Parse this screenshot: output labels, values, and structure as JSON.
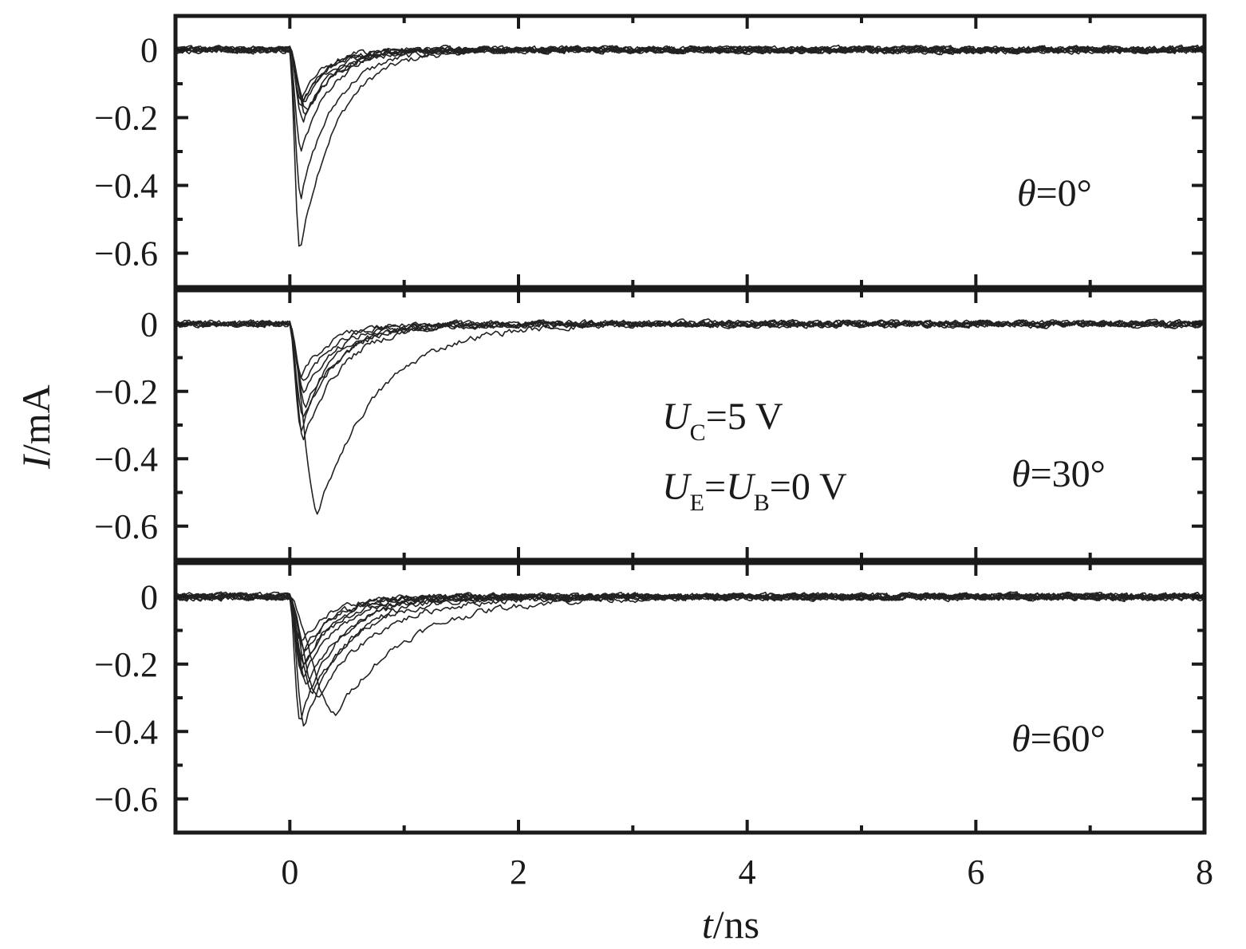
{
  "chart_data": {
    "type": "line",
    "xlabel": {
      "italic": "t",
      "rest": "/ns"
    },
    "ylabel": {
      "italic": "I",
      "rest": "/mA"
    },
    "xlim": [
      -1,
      8
    ],
    "xticks": [
      0,
      2,
      4,
      6,
      8
    ],
    "xtick_labels": [
      "0",
      "2",
      "4",
      "6",
      "8"
    ],
    "grid": false,
    "bias_annotation": {
      "line1": {
        "sym": "U",
        "sub": "C",
        "rest": "=5 V"
      },
      "line2": {
        "sym1": "U",
        "sub1": "E",
        "eq": "=",
        "sym2": "U",
        "sub2": "B",
        "rest": "=0 V"
      }
    },
    "panels": [
      {
        "label": {
          "sym": "θ",
          "rest": "=0°"
        },
        "ylim": [
          -0.7,
          0.1
        ],
        "yticks": [
          0,
          -0.2,
          -0.4,
          -0.6
        ],
        "ytick_labels": [
          "0",
          "−0.2",
          "−0.4",
          "−0.6"
        ],
        "series": [
          {
            "peak": -0.59,
            "t_peak": 0.09,
            "tau": 0.32
          },
          {
            "peak": -0.43,
            "t_peak": 0.1,
            "tau": 0.3
          },
          {
            "peak": -0.3,
            "t_peak": 0.1,
            "tau": 0.26
          },
          {
            "peak": -0.21,
            "t_peak": 0.12,
            "tau": 0.26
          },
          {
            "peak": -0.19,
            "t_peak": 0.14,
            "tau": 0.24
          },
          {
            "peak": -0.18,
            "t_peak": 0.16,
            "tau": 0.26
          },
          {
            "peak": -0.17,
            "t_peak": 0.1,
            "tau": 0.22
          },
          {
            "peak": -0.16,
            "t_peak": 0.13,
            "tau": 0.24
          },
          {
            "peak": -0.15,
            "t_peak": 0.12,
            "tau": 0.22
          },
          {
            "peak": -0.14,
            "t_peak": 0.1,
            "tau": 0.2
          }
        ]
      },
      {
        "label": {
          "sym": "θ",
          "rest": "=30°"
        },
        "ylim": [
          -0.7,
          0.1
        ],
        "yticks": [
          0,
          -0.2,
          -0.4,
          -0.6
        ],
        "ytick_labels": [
          "0",
          "−0.2",
          "−0.4",
          "−0.6"
        ],
        "series": [
          {
            "peak": -0.56,
            "t_peak": 0.25,
            "tau": 0.52
          },
          {
            "peak": -0.34,
            "t_peak": 0.12,
            "tau": 0.34
          },
          {
            "peak": -0.31,
            "t_peak": 0.1,
            "tau": 0.3
          },
          {
            "peak": -0.27,
            "t_peak": 0.12,
            "tau": 0.32
          },
          {
            "peak": -0.24,
            "t_peak": 0.14,
            "tau": 0.3
          },
          {
            "peak": -0.2,
            "t_peak": 0.13,
            "tau": 0.28
          },
          {
            "peak": -0.18,
            "t_peak": 0.12,
            "tau": 0.26
          },
          {
            "peak": -0.16,
            "t_peak": 0.1,
            "tau": 0.24
          }
        ]
      },
      {
        "label": {
          "sym": "θ",
          "rest": "=60°"
        },
        "ylim": [
          -0.7,
          0.1
        ],
        "yticks": [
          0,
          -0.2,
          -0.4,
          -0.6
        ],
        "ytick_labels": [
          "0",
          "−0.2",
          "−0.4",
          "−0.6"
        ],
        "series": [
          {
            "peak": -0.38,
            "t_peak": 0.13,
            "tau": 0.36
          },
          {
            "peak": -0.37,
            "t_peak": 0.09,
            "tau": 0.32
          },
          {
            "peak": -0.35,
            "t_peak": 0.4,
            "tau": 0.62
          },
          {
            "peak": -0.3,
            "t_peak": 0.25,
            "tau": 0.5
          },
          {
            "peak": -0.28,
            "t_peak": 0.2,
            "tau": 0.42
          },
          {
            "peak": -0.26,
            "t_peak": 0.15,
            "tau": 0.36
          },
          {
            "peak": -0.24,
            "t_peak": 0.12,
            "tau": 0.32
          },
          {
            "peak": -0.22,
            "t_peak": 0.1,
            "tau": 0.3
          },
          {
            "peak": -0.2,
            "t_peak": 0.12,
            "tau": 0.28
          },
          {
            "peak": -0.18,
            "t_peak": 0.1,
            "tau": 0.26
          },
          {
            "peak": -0.16,
            "t_peak": 0.14,
            "tau": 0.26
          },
          {
            "peak": -0.14,
            "t_peak": 0.1,
            "tau": 0.24
          }
        ]
      }
    ]
  }
}
